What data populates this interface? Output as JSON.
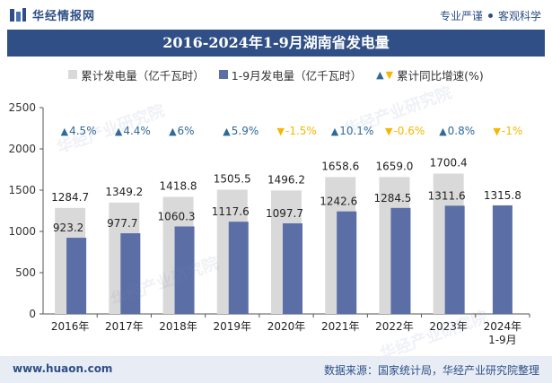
{
  "header": {
    "brand": "华经情报网",
    "slogan_left": "专业严谨",
    "slogan_right": "客观科学"
  },
  "footer": {
    "site": "www.huaon.com",
    "source": "数据来源：国家统计局，华经产业研究院整理"
  },
  "watermark": "华经产业研究院",
  "colors": {
    "title_bg": "#2f4f86",
    "cumulative": "#d9d9d9",
    "monthly": "#5b6fa6",
    "up": "#2f6a9a",
    "down": "#f5b800"
  },
  "chart_data": {
    "type": "bar",
    "title": "2016-2024年1-9月湖南省发电量",
    "categories": [
      "2016年",
      "2017年",
      "2018年",
      "2019年",
      "2020年",
      "2021年",
      "2022年",
      "2023年",
      "2024年\n1-9月"
    ],
    "series": [
      {
        "name": "累计发电量（亿千瓦时）",
        "values": [
          1284.7,
          1349.2,
          1418.8,
          1505.5,
          1496.2,
          1658.6,
          1659.0,
          1700.4,
          null
        ],
        "labels": [
          "1284.7",
          "1349.2",
          "1418.8",
          "1505.5",
          "1496.2",
          "1658.6",
          "1659.0",
          "1700.4",
          ""
        ]
      },
      {
        "name": "1-9月发电量（亿千瓦时）",
        "values": [
          923.2,
          977.7,
          1060.3,
          1117.6,
          1097.7,
          1242.6,
          1284.5,
          1311.6,
          1315.8
        ],
        "labels": [
          "923.2",
          "977.7",
          "1060.3",
          "1117.6",
          "1097.7",
          "1242.6",
          "1284.5",
          "1311.6",
          "1315.8"
        ]
      }
    ],
    "growth": {
      "name": "累计同比增速(%)",
      "labels": [
        "4.5%",
        "4.4%",
        "6%",
        "5.9%",
        "-1.5%",
        "10.1%",
        "-0.6%",
        "0.8%",
        "-1%"
      ],
      "directions": [
        "up",
        "up",
        "up",
        "up",
        "down",
        "up",
        "down",
        "up",
        "down"
      ]
    },
    "ylim": [
      0,
      2500
    ],
    "yticks": [
      0,
      500,
      1000,
      1500,
      2000,
      2500
    ],
    "xlabel": "",
    "ylabel": "",
    "legend_position": "top"
  }
}
